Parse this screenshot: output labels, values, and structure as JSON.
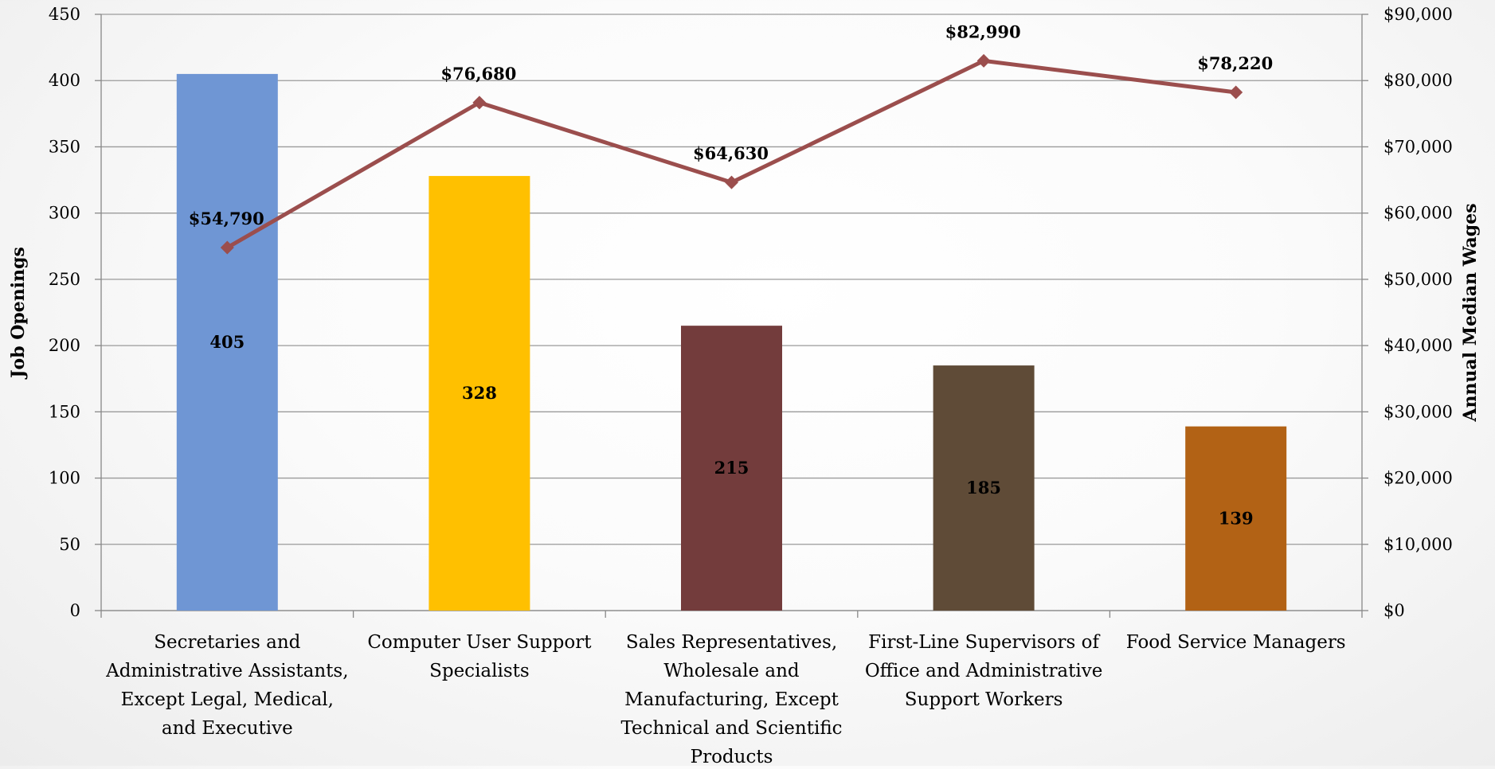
{
  "chart_data": {
    "type": "bar",
    "title": "",
    "categories": [
      [
        "Secretaries and",
        "Administrative Assistants,",
        "Except Legal, Medical,",
        "and Executive"
      ],
      [
        "Computer User Support",
        "Specialists"
      ],
      [
        "Sales Representatives,",
        "Wholesale and",
        "Manufacturing, Except",
        "Technical and Scientific",
        "Products"
      ],
      [
        "First-Line Supervisors of",
        "Office and Administrative",
        "Support Workers"
      ],
      [
        "Food Service Managers"
      ]
    ],
    "ylabel_left": "Job Openings",
    "ylabel_right": "Annual Median Wages",
    "ylim_left": [
      0,
      450
    ],
    "ylim_right": [
      0,
      90000
    ],
    "yticks_left": [
      "0",
      "50",
      "100",
      "150",
      "200",
      "250",
      "300",
      "350",
      "400",
      "450"
    ],
    "yticks_right": [
      "$0",
      "$10,000",
      "$20,000",
      "$30,000",
      "$40,000",
      "$50,000",
      "$60,000",
      "$70,000",
      "$80,000",
      "$90,000"
    ],
    "grid": true,
    "series": [
      {
        "type": "bar",
        "axis": "left",
        "values": [
          405,
          328,
          215,
          185,
          139
        ],
        "labels": [
          "405",
          "328",
          "215",
          "185",
          "139"
        ],
        "colors": [
          "#6f96d4",
          "#ffc000",
          "#733c3c",
          "#5f4b37",
          "#b26215"
        ]
      },
      {
        "type": "line",
        "axis": "right",
        "values": [
          54790,
          76680,
          64630,
          82990,
          78220
        ],
        "labels": [
          "$54,790",
          "$76,680",
          "$64,630",
          "$82,990",
          "$78,220"
        ],
        "color": "#9b4e4d",
        "marker": "diamond"
      }
    ]
  }
}
